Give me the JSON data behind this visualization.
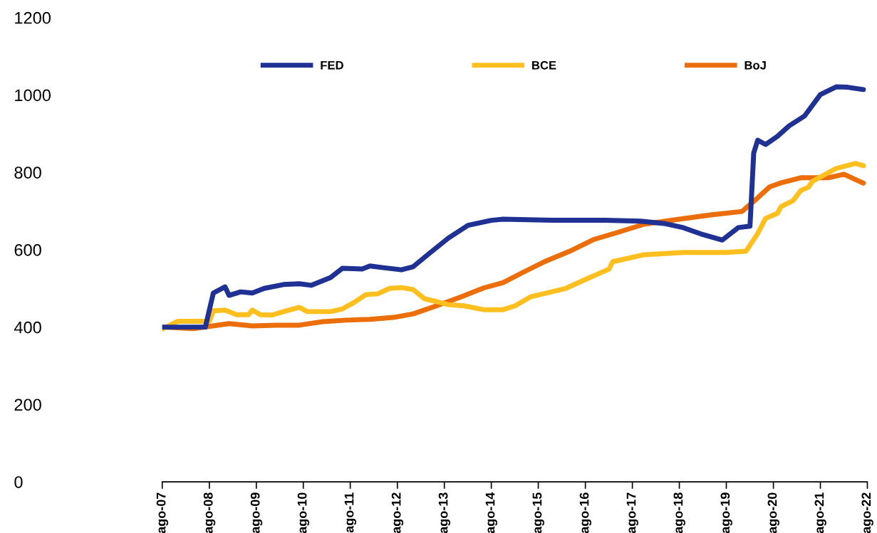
{
  "chart_data": {
    "type": "line",
    "xlim": [
      "2007-08",
      "2022-08"
    ],
    "xticks": [
      {
        "value": "2007-08",
        "label": "ago-07"
      },
      {
        "value": "2008-08",
        "label": "ago-08"
      },
      {
        "value": "2009-08",
        "label": "ago-09"
      },
      {
        "value": "2010-08",
        "label": "ago-10"
      },
      {
        "value": "2011-08",
        "label": "ago-11"
      },
      {
        "value": "2012-08",
        "label": "ago-12"
      },
      {
        "value": "2013-08",
        "label": "ago-13"
      },
      {
        "value": "2014-08",
        "label": "ago-14"
      },
      {
        "value": "2015-08",
        "label": "ago-15"
      },
      {
        "value": "2016-08",
        "label": "ago-16"
      },
      {
        "value": "2017-08",
        "label": "ago-17"
      },
      {
        "value": "2018-08",
        "label": "ago-18"
      },
      {
        "value": "2019-08",
        "label": "ago-19"
      },
      {
        "value": "2020-08",
        "label": "ago-20"
      },
      {
        "value": "2021-08",
        "label": "ago-21"
      },
      {
        "value": "2022-08",
        "label": "ago-22"
      }
    ],
    "ylim": [
      0,
      1200
    ],
    "yticks": [
      0,
      200,
      400,
      600,
      800,
      1000,
      1200
    ],
    "grid": false,
    "legend": "top",
    "marker": "none",
    "line_style": "solid",
    "series": [
      {
        "name": "FED",
        "color": "#1f3193",
        "x": [
          "2007-08",
          "2008-07",
          "2008-09",
          "2008-12",
          "2009-01",
          "2009-04",
          "2009-07",
          "2009-10",
          "2010-03",
          "2010-07",
          "2010-10",
          "2011-03",
          "2011-06",
          "2011-11",
          "2012-01",
          "2012-04",
          "2012-09",
          "2012-12",
          "2013-04",
          "2013-09",
          "2014-02",
          "2014-08",
          "2014-11",
          "2015-12",
          "2017-01",
          "2017-10",
          "2018-04",
          "2018-09",
          "2019-02",
          "2019-07",
          "2019-11",
          "2020-02",
          "2020-03",
          "2020-04",
          "2020-06",
          "2020-09",
          "2020-12",
          "2021-04",
          "2021-08",
          "2021-12",
          "2022-03",
          "2022-07"
        ],
        "values": [
          400,
          400,
          488,
          504,
          482,
          491,
          488,
          500,
          510,
          512,
          508,
          528,
          552,
          550,
          558,
          554,
          548,
          556,
          589,
          630,
          663,
          676,
          679,
          676,
          676,
          674,
          668,
          657,
          639,
          625,
          657,
          661,
          850,
          883,
          872,
          893,
          920,
          946,
          1001,
          1021,
          1020,
          1014
        ]
      },
      {
        "name": "BCE",
        "color": "#ffc01f",
        "x": [
          "2007-08",
          "2007-12",
          "2008-08",
          "2008-09",
          "2008-12",
          "2009-03",
          "2009-06",
          "2009-07",
          "2009-09",
          "2009-12",
          "2010-03",
          "2010-07",
          "2010-09",
          "2011-03",
          "2011-06",
          "2011-09",
          "2011-12",
          "2012-03",
          "2012-06",
          "2012-09",
          "2012-12",
          "2013-03",
          "2013-06",
          "2013-09",
          "2014-01",
          "2014-06",
          "2014-11",
          "2015-02",
          "2015-06",
          "2016-03",
          "2016-08",
          "2017-02",
          "2017-03",
          "2017-11",
          "2018-09",
          "2019-08",
          "2020-01",
          "2020-04",
          "2020-06",
          "2020-09",
          "2020-10",
          "2021-01",
          "2021-03",
          "2021-05",
          "2021-06",
          "2021-12",
          "2022-05",
          "2022-07"
        ],
        "values": [
          395,
          415,
          415,
          442,
          444,
          432,
          432,
          444,
          432,
          431,
          440,
          451,
          440,
          440,
          447,
          464,
          484,
          486,
          500,
          502,
          497,
          473,
          466,
          458,
          455,
          445,
          445,
          455,
          478,
          500,
          523,
          550,
          569,
          587,
          593,
          593,
          596,
          642,
          681,
          694,
          712,
          727,
          753,
          762,
          777,
          810,
          823,
          817
        ]
      },
      {
        "name": "BoJ",
        "color": "#eb6e0a",
        "x": [
          "2007-08",
          "2008-04",
          "2009-01",
          "2009-07",
          "2010-01",
          "2010-07",
          "2011-01",
          "2011-07",
          "2012-01",
          "2012-07",
          "2012-12",
          "2013-06",
          "2013-12",
          "2014-06",
          "2014-11",
          "2015-04",
          "2015-10",
          "2016-04",
          "2016-10",
          "2017-04",
          "2017-11",
          "2018-08",
          "2019-04",
          "2019-12",
          "2020-04",
          "2020-07",
          "2020-10",
          "2021-03",
          "2021-10",
          "2022-02",
          "2022-07"
        ],
        "values": [
          400,
          396,
          409,
          403,
          405,
          405,
          414,
          418,
          420,
          425,
          434,
          455,
          477,
          501,
          515,
          541,
          571,
          596,
          626,
          644,
          666,
          679,
          690,
          699,
          734,
          762,
          773,
          786,
          786,
          795,
          772
        ]
      }
    ]
  }
}
